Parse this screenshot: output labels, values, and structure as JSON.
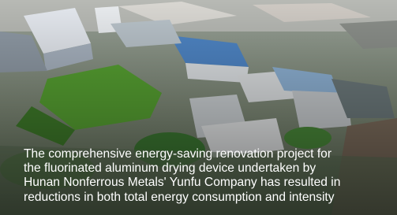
{
  "caption": {
    "lines": [
      "The comprehensive energy-saving renovation project for",
      "the fluorinated aluminum drying device undertaken by",
      "Hunan Nonferrous Metals' Yunfu Company has resulted in",
      "reductions in both total energy consumption and intensity"
    ]
  }
}
